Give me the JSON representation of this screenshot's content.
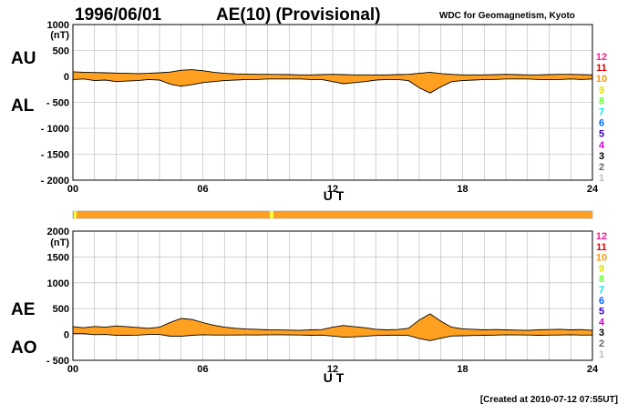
{
  "header": {
    "date": "1996/06/01",
    "title": "AE(10) (Provisional)",
    "source": "WDC for Geomagnetism, Kyoto"
  },
  "footer": {
    "created": "[Created at 2010-07-12 07:55UT]"
  },
  "colors": {
    "fill": "#ffa020",
    "trace": "#000000",
    "grid": "#b4b4b4",
    "strip": "#ffa020",
    "strip_marker": "#ffff40"
  },
  "station_legend": [
    {
      "label": "12",
      "color": "#ff1a8c"
    },
    {
      "label": "11",
      "color": "#e00000"
    },
    {
      "label": "10",
      "color": "#ff9900"
    },
    {
      "label": "9",
      "color": "#e0e000"
    },
    {
      "label": "8",
      "color": "#66ff33"
    },
    {
      "label": "7",
      "color": "#00e5ee"
    },
    {
      "label": "6",
      "color": "#0066ff"
    },
    {
      "label": "5",
      "color": "#3300cc"
    },
    {
      "label": "4",
      "color": "#cc00cc"
    },
    {
      "label": "3",
      "color": "#000000"
    },
    {
      "label": "2",
      "color": "#666666"
    },
    {
      "label": "1",
      "color": "#bbbbbb"
    }
  ],
  "chart_data": [
    {
      "type": "area",
      "upper_label": "AU",
      "lower_label": "AL",
      "unit": "(nT)",
      "xlabel": "U T",
      "x_ticks": [
        "00",
        "06",
        "12",
        "18",
        "24"
      ],
      "xlim": [
        0,
        24
      ],
      "ylim": [
        -2000,
        1000
      ],
      "y_ticks": [
        {
          "value": 1000,
          "label": "1000"
        },
        {
          "value": 500,
          "label": "500"
        },
        {
          "value": 0,
          "label": "0"
        },
        {
          "value": -500,
          "label": "- 500"
        },
        {
          "value": -1000,
          "label": "- 1000"
        },
        {
          "value": -1500,
          "label": "- 1500"
        },
        {
          "value": -2000,
          "label": "- 2000"
        }
      ],
      "series": [
        {
          "name": "AU",
          "x": [
            0,
            0.5,
            1,
            1.5,
            2,
            2.5,
            3,
            3.5,
            4,
            4.5,
            5,
            5.5,
            6,
            6.5,
            7,
            7.5,
            8,
            8.5,
            9,
            9.5,
            10,
            10.5,
            11,
            11.5,
            12,
            12.5,
            13,
            13.5,
            14,
            14.5,
            15,
            15.5,
            16,
            16.5,
            17,
            17.5,
            18,
            18.5,
            19,
            19.5,
            20,
            20.5,
            21,
            21.5,
            22,
            22.5,
            23,
            23.5,
            24
          ],
          "values": [
            90,
            80,
            75,
            70,
            65,
            60,
            55,
            60,
            70,
            85,
            120,
            130,
            110,
            80,
            60,
            50,
            45,
            40,
            40,
            38,
            35,
            30,
            30,
            35,
            40,
            35,
            30,
            30,
            30,
            30,
            35,
            40,
            60,
            80,
            55,
            40,
            30,
            30,
            30,
            35,
            40,
            35,
            30,
            30,
            35,
            40,
            40,
            35,
            30
          ]
        },
        {
          "name": "AL",
          "x": [
            0,
            0.5,
            1,
            1.5,
            2,
            2.5,
            3,
            3.5,
            4,
            4.5,
            5,
            5.5,
            6,
            6.5,
            7,
            7.5,
            8,
            8.5,
            9,
            9.5,
            10,
            10.5,
            11,
            11.5,
            12,
            12.5,
            13,
            13.5,
            14,
            14.5,
            15,
            15.5,
            16,
            16.5,
            17,
            17.5,
            18,
            18.5,
            19,
            19.5,
            20,
            20.5,
            21,
            21.5,
            22,
            22.5,
            23,
            23.5,
            24
          ],
          "values": [
            -60,
            -50,
            -80,
            -70,
            -100,
            -90,
            -80,
            -60,
            -70,
            -150,
            -190,
            -160,
            -120,
            -100,
            -80,
            -70,
            -60,
            -60,
            -50,
            -50,
            -50,
            -50,
            -60,
            -60,
            -100,
            -140,
            -120,
            -100,
            -70,
            -60,
            -60,
            -80,
            -220,
            -320,
            -200,
            -100,
            -80,
            -70,
            -60,
            -60,
            -50,
            -50,
            -50,
            -60,
            -60,
            -60,
            -50,
            -60,
            -50
          ]
        }
      ]
    },
    {
      "type": "area",
      "upper_label": "AE",
      "lower_label": "AO",
      "unit": "(nT)",
      "xlabel": "U T",
      "x_ticks": [
        "00",
        "06",
        "12",
        "18",
        "24"
      ],
      "xlim": [
        0,
        24
      ],
      "ylim": [
        -500,
        2000
      ],
      "y_ticks": [
        {
          "value": 2000,
          "label": "2000"
        },
        {
          "value": 1500,
          "label": "1500"
        },
        {
          "value": 1000,
          "label": "1000"
        },
        {
          "value": 500,
          "label": "500"
        },
        {
          "value": 0,
          "label": "0"
        },
        {
          "value": -500,
          "label": "- 500"
        }
      ],
      "series": [
        {
          "name": "AE",
          "x": [
            0,
            0.5,
            1,
            1.5,
            2,
            2.5,
            3,
            3.5,
            4,
            4.5,
            5,
            5.5,
            6,
            6.5,
            7,
            7.5,
            8,
            8.5,
            9,
            9.5,
            10,
            10.5,
            11,
            11.5,
            12,
            12.5,
            13,
            13.5,
            14,
            14.5,
            15,
            15.5,
            16,
            16.5,
            17,
            17.5,
            18,
            18.5,
            19,
            19.5,
            20,
            20.5,
            21,
            21.5,
            22,
            22.5,
            23,
            23.5,
            24
          ],
          "values": [
            150,
            130,
            155,
            140,
            165,
            150,
            135,
            120,
            140,
            235,
            310,
            290,
            230,
            180,
            140,
            120,
            105,
            100,
            90,
            88,
            85,
            80,
            90,
            95,
            140,
            175,
            150,
            130,
            100,
            90,
            95,
            120,
            280,
            400,
            255,
            140,
            110,
            100,
            90,
            95,
            90,
            85,
            80,
            90,
            95,
            100,
            90,
            95,
            80
          ]
        },
        {
          "name": "AO",
          "x": [
            0,
            0.5,
            1,
            1.5,
            2,
            2.5,
            3,
            3.5,
            4,
            4.5,
            5,
            5.5,
            6,
            6.5,
            7,
            7.5,
            8,
            8.5,
            9,
            9.5,
            10,
            10.5,
            11,
            11.5,
            12,
            12.5,
            13,
            13.5,
            14,
            14.5,
            15,
            15.5,
            16,
            16.5,
            17,
            17.5,
            18,
            18.5,
            19,
            19.5,
            20,
            20.5,
            21,
            21.5,
            22,
            22.5,
            23,
            23.5,
            24
          ],
          "values": [
            15,
            15,
            -3,
            0,
            -18,
            -15,
            -13,
            0,
            0,
            -33,
            -35,
            -15,
            -5,
            -10,
            -10,
            -10,
            -8,
            -10,
            -5,
            -6,
            -8,
            -10,
            -15,
            -13,
            -30,
            -53,
            -45,
            -35,
            -20,
            -15,
            -13,
            -20,
            -80,
            -120,
            -73,
            -30,
            -25,
            -20,
            -15,
            -13,
            -5,
            -8,
            -10,
            -15,
            -13,
            -10,
            -5,
            -13,
            -10
          ]
        }
      ]
    }
  ]
}
